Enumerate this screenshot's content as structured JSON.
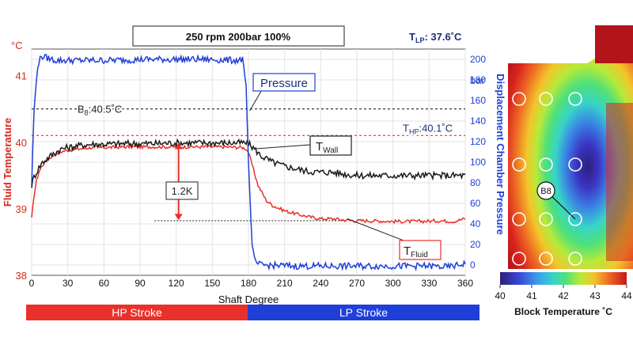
{
  "header": {
    "condition_label": "250 rpm 200bar 100%",
    "tlp_prefix": "T",
    "tlp_sub": "LP",
    "tlp_value": ": 37.6˚C"
  },
  "strokes": {
    "hp": "HP Stroke",
    "lp": "LP Stroke"
  },
  "colors": {
    "fluid": "#e8312a",
    "wall": "#1a1a1a",
    "pressure": "#1f3fd9",
    "axis_left": "#d42a1f",
    "axis_right": "#1f3fd9"
  },
  "chart_data": {
    "type": "line",
    "title": "250 rpm 200bar 100%",
    "xlabel": "Shaft Degree",
    "ylabel_left": "Fluid Temperature",
    "ylabel_right": "Displacement Chamber Pressure",
    "unit_left": "°C",
    "unit_right": "bar",
    "xlim": [
      0,
      360
    ],
    "ylim_left": [
      38,
      41.4
    ],
    "ylim_right": [
      -10,
      210
    ],
    "x_ticks": [
      "0",
      "30",
      "60",
      "90",
      "120",
      "150",
      "180",
      "210",
      "240",
      "270",
      "300",
      "330",
      "360"
    ],
    "y_left_ticks": [
      "38",
      "39",
      "40",
      "41"
    ],
    "y_right_ticks": [
      "0",
      "20",
      "40",
      "60",
      "80",
      "100",
      "120",
      "140",
      "160",
      "180",
      "200"
    ],
    "grid": true,
    "series": [
      {
        "name": "T_Fluid",
        "axis": "left",
        "x": [
          0,
          2,
          4,
          6,
          8,
          12,
          16,
          20,
          25,
          30,
          40,
          50,
          60,
          80,
          100,
          120,
          140,
          160,
          175,
          178,
          180,
          184,
          188,
          195,
          200,
          210,
          220,
          230,
          240,
          250,
          260,
          270,
          280,
          300,
          320,
          340,
          350,
          360
        ],
        "values": [
          38.85,
          39.2,
          39.42,
          39.55,
          39.63,
          39.72,
          39.78,
          39.82,
          39.86,
          39.88,
          39.9,
          39.92,
          39.92,
          39.93,
          39.93,
          39.93,
          39.93,
          39.93,
          39.92,
          39.9,
          39.85,
          39.6,
          39.35,
          39.12,
          39.05,
          38.97,
          38.92,
          38.88,
          38.85,
          38.85,
          38.83,
          38.82,
          38.82,
          38.81,
          38.81,
          38.82,
          38.81,
          38.85
        ]
      },
      {
        "name": "T_Wall",
        "axis": "left",
        "x": [
          0,
          2,
          5,
          8,
          12,
          16,
          20,
          25,
          30,
          40,
          50,
          60,
          80,
          100,
          120,
          140,
          160,
          175,
          180,
          185,
          190,
          200,
          210,
          220,
          230,
          240,
          250,
          260,
          270,
          280,
          290,
          300,
          320,
          340,
          360
        ],
        "values": [
          39.35,
          39.48,
          39.58,
          39.68,
          39.74,
          39.8,
          39.85,
          39.9,
          39.92,
          39.95,
          39.97,
          39.97,
          39.98,
          39.98,
          39.99,
          39.99,
          39.99,
          39.99,
          39.98,
          39.9,
          39.8,
          39.7,
          39.64,
          39.6,
          39.56,
          39.55,
          39.55,
          39.52,
          39.5,
          39.5,
          39.5,
          39.5,
          39.5,
          39.5,
          39.5
        ]
      },
      {
        "name": "Pressure",
        "axis": "right",
        "x": [
          0,
          2,
          5,
          8,
          20,
          60,
          100,
          140,
          170,
          175,
          178,
          180,
          183,
          186,
          190,
          220,
          260,
          300,
          330,
          345,
          350,
          355,
          360
        ],
        "values": [
          78,
          150,
          194,
          203,
          199,
          199,
          200,
          200,
          199,
          200,
          175,
          100,
          20,
          2,
          0,
          -1,
          -1,
          -1,
          -1,
          -2,
          -1,
          0,
          2
        ]
      }
    ],
    "annotations": {
      "b8_label": "B",
      "b8_sub": "8",
      "b8_text": ":40.5˚C",
      "b8_value": 40.5,
      "thp_label": "T",
      "thp_sub": "HP",
      "thp_text": ":40.1˚C",
      "thp_value": 40.1,
      "ref_level": 38.82,
      "delta_label": "1.2K",
      "pressure_label": "Pressure",
      "twall_main": "T",
      "twall_sub": "Wall",
      "tfluid_main": "T",
      "tfluid_sub": "Fluid"
    }
  },
  "thermal_map": {
    "colorbar_title": "Block Temperature ˚C",
    "colorbar_ticks": [
      "40",
      "41",
      "42",
      "43",
      "44"
    ],
    "colorbar_range": [
      40,
      44
    ],
    "sensor_label": "B8",
    "sensor_count": 12
  }
}
